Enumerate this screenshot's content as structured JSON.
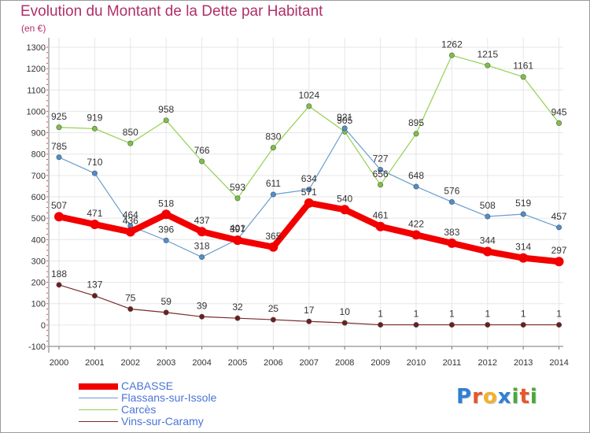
{
  "title": "Evolution du Montant de la Dette par Habitant",
  "subtitle": "(en €)",
  "logo": {
    "letters": [
      "P",
      "r",
      "o",
      "x",
      "i",
      "t",
      "i"
    ],
    "colors": [
      "#2f7fd6",
      "#e8562a",
      "#f3b12a",
      "#2f7fd6",
      "#4aa83a",
      "#e8562a",
      "#4aa83a"
    ]
  },
  "chart_data": {
    "type": "line",
    "title": "Evolution du Montant de la Dette par Habitant",
    "ylabel": "(en €)",
    "x": [
      "2000",
      "2001",
      "2002",
      "2003",
      "2004",
      "2005",
      "2006",
      "2007",
      "2008",
      "2009",
      "2010",
      "2011",
      "2012",
      "2013",
      "2014"
    ],
    "yticks": [
      "-100",
      "0",
      "100",
      "200",
      "300",
      "400",
      "500",
      "600",
      "700",
      "800",
      "900",
      "1000",
      "1100",
      "1200",
      "1300"
    ],
    "ylim": [
      -100,
      1300
    ],
    "grid": true,
    "legend_placement": "bottom-left",
    "series": [
      {
        "name": "Carcès",
        "color": "#92d050",
        "point_color": "#7cc242",
        "line_width": 1.2,
        "marker_r": 3.2,
        "values": [
          925,
          919,
          850,
          958,
          766,
          593,
          830,
          1024,
          905,
          656,
          895,
          1262,
          1215,
          1161,
          945
        ],
        "labels": [
          "925",
          "919",
          "850",
          "958",
          "766",
          "593",
          "830",
          "1024",
          "905",
          "656",
          "895",
          "1262",
          "1215",
          "1161",
          "945"
        ]
      },
      {
        "name": "Flassans-sur-Issole",
        "color": "#6a9ccf",
        "point_color": "#4d8fd0",
        "line_width": 1.2,
        "marker_r": 3.2,
        "values": [
          785,
          710,
          464,
          396,
          318,
          401,
          611,
          634,
          921,
          727,
          648,
          576,
          508,
          519,
          457
        ],
        "labels": [
          "785",
          "710",
          "464",
          "396",
          "318",
          "401",
          "611",
          "634",
          "921",
          "727",
          "648",
          "576",
          "508",
          "519",
          "457"
        ]
      },
      {
        "name": "CABASSE",
        "color": "#f20000",
        "point_color": "#f20000",
        "line_width": 8,
        "marker_r": 6,
        "values": [
          507,
          471,
          436,
          518,
          437,
          397,
          365,
          571,
          540,
          461,
          422,
          383,
          344,
          314,
          297
        ],
        "labels": [
          "507",
          "471",
          "436",
          "518",
          "437",
          "397",
          "365",
          "571",
          "540",
          "461",
          "422",
          "383",
          "344",
          "314",
          "297"
        ]
      },
      {
        "name": "Vins-sur-Caramy",
        "color": "#7a2a2a",
        "point_color": "#6b1f1f",
        "line_width": 1.2,
        "marker_r": 3.2,
        "values": [
          188,
          137,
          75,
          59,
          39,
          32,
          25,
          17,
          10,
          1,
          1,
          1,
          1,
          1,
          1
        ],
        "labels": [
          "188",
          "137",
          "75",
          "59",
          "39",
          "32",
          "25",
          "17",
          "10",
          "1",
          "1",
          "1",
          "1",
          "1",
          "1"
        ]
      }
    ]
  },
  "legend": [
    {
      "label": "CABASSE",
      "color": "#f20000",
      "thickness": 8
    },
    {
      "label": "Flassans-sur-Issole",
      "color": "#6a9ccf",
      "thickness": 1.5
    },
    {
      "label": "Carcès",
      "color": "#92d050",
      "thickness": 1.5
    },
    {
      "label": "Vins-sur-Caramy",
      "color": "#7a2a2a",
      "thickness": 1.5
    }
  ]
}
